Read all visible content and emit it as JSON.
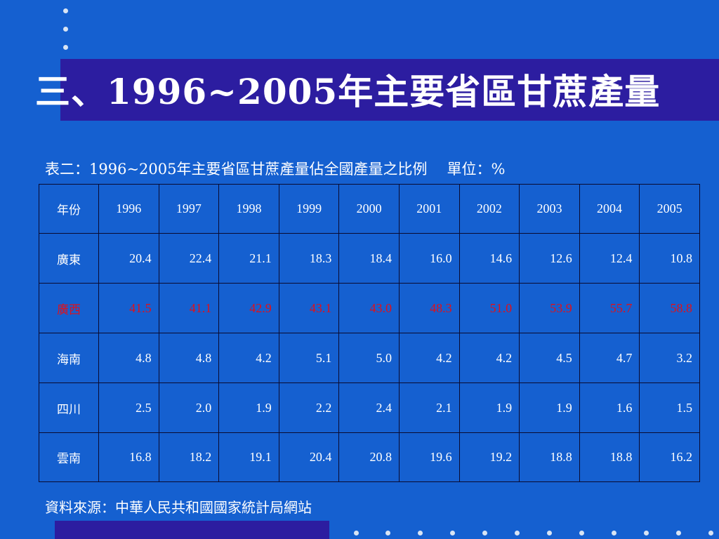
{
  "slide": {
    "title": "三、1996~2005年主要省區甘蔗產量",
    "caption": "表二：1996~2005年主要省區甘蔗產量佔全國產量之比例",
    "unit": "單位：%",
    "source": "資料來源：中華人民共和國國家統計局網站"
  },
  "table": {
    "corner": "年份",
    "years": [
      "1996",
      "1997",
      "1998",
      "1999",
      "2000",
      "2001",
      "2002",
      "2003",
      "2004",
      "2005"
    ],
    "rows": [
      {
        "region": "廣東",
        "values": [
          "20.4",
          "22.4",
          "21.1",
          "18.3",
          "18.4",
          "16.0",
          "14.6",
          "12.6",
          "12.4",
          "10.8"
        ]
      },
      {
        "region": "廣西",
        "values": [
          "41.5",
          "41.1",
          "42.9",
          "43.1",
          "43.0",
          "48.3",
          "51.0",
          "53.9",
          "55.7",
          "58.8"
        ],
        "highlight": true
      },
      {
        "region": "海南",
        "values": [
          "4.8",
          "4.8",
          "4.2",
          "5.1",
          "5.0",
          "4.2",
          "4.2",
          "4.5",
          "4.7",
          "3.2"
        ]
      },
      {
        "region": "四川",
        "values": [
          "2.5",
          "2.0",
          "1.9",
          "2.2",
          "2.4",
          "2.1",
          "1.9",
          "1.9",
          "1.6",
          "1.5"
        ]
      },
      {
        "region": "雲南",
        "values": [
          "16.8",
          "18.2",
          "19.1",
          "20.4",
          "20.8",
          "19.6",
          "19.2",
          "18.8",
          "18.8",
          "16.2"
        ]
      }
    ]
  },
  "colors": {
    "background": "#1560d0",
    "band": "#2c1da0",
    "text": "#ffffff",
    "highlight_text": "#e0101a",
    "dots": "#d8e4f4"
  }
}
